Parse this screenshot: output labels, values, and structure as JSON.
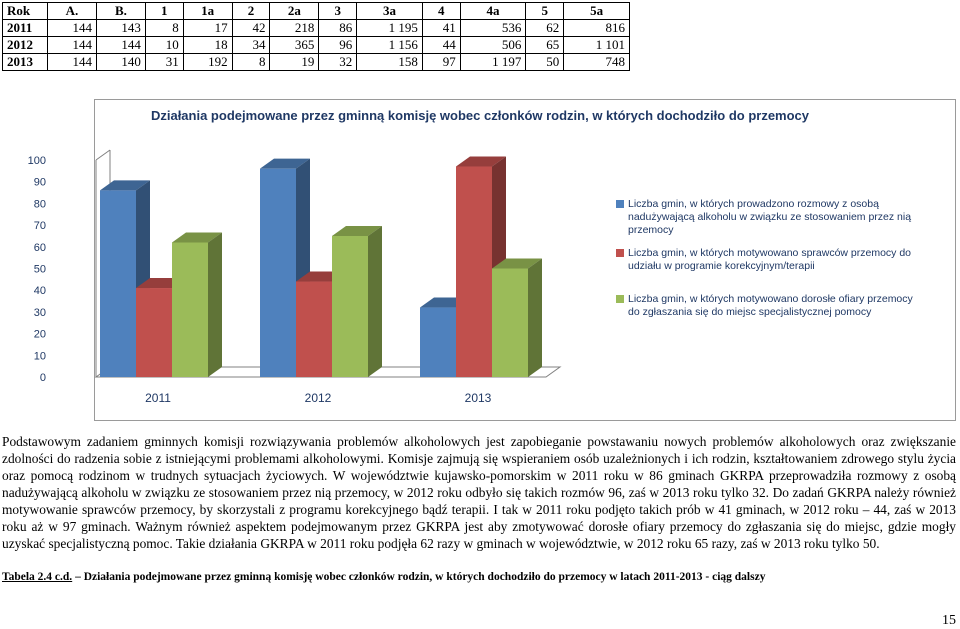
{
  "table": {
    "headers": [
      "Rok",
      "A.",
      "B.",
      "1",
      "1a",
      "2",
      "2a",
      "3",
      "3a",
      "4",
      "4a",
      "5",
      "5a"
    ],
    "rows": [
      [
        "2011",
        "144",
        "143",
        "8",
        "17",
        "42",
        "218",
        "86",
        "1 195",
        "41",
        "536",
        "62",
        "816"
      ],
      [
        "2012",
        "144",
        "144",
        "10",
        "18",
        "34",
        "365",
        "96",
        "1 156",
        "44",
        "506",
        "65",
        "1 101"
      ],
      [
        "2013",
        "144",
        "140",
        "31",
        "192",
        "8",
        "19",
        "32",
        "158",
        "97",
        "1 197",
        "50",
        "748"
      ]
    ]
  },
  "chart_data": {
    "type": "bar",
    "title": "Działania podejmowane przez gminną komisję wobec członków rodzin, w których dochodziło do przemocy",
    "categories": [
      "2011",
      "2012",
      "2013"
    ],
    "series": [
      {
        "name": "Liczba gmin, w których prowadzono rozmowy z osobą nadużywającą alkoholu w związku ze stosowaniem przez nią przemocy",
        "values": [
          86,
          96,
          32
        ],
        "color": "#4f81bd"
      },
      {
        "name": "Liczba gmin, w których motywowano sprawców przemocy do udziału w programie korekcyjnym/terapii",
        "values": [
          41,
          44,
          97
        ],
        "color": "#c0504d"
      },
      {
        "name": "Liczba gmin, w których motywowano dorosłe ofiary przemocy do zgłaszania się do miejsc specjalistycznej pomocy",
        "values": [
          62,
          65,
          50
        ],
        "color": "#9bbb59"
      }
    ],
    "yticks": [
      0,
      10,
      20,
      30,
      40,
      50,
      60,
      70,
      80,
      90,
      100
    ],
    "ylim": [
      0,
      100
    ],
    "legend": "right",
    "style": "3d-clustered"
  },
  "body_text": "Podstawowym zadaniem gminnych komisji rozwiązywania problemów alkoholowych jest zapobieganie powstawaniu nowych problemów alkoholowych oraz zwiększanie zdolności do radzenia sobie z istniejącymi problemami alkoholowymi. Komisje zajmują się wspieraniem osób uzależnionych i ich rodzin, kształtowaniem zdrowego stylu życia oraz pomocą rodzinom w trudnych sytuacjach życiowych. W województwie kujawsko-pomorskim w 2011 roku w 86 gminach GKRPA przeprowadziła rozmowy z osobą nadużywającą alkoholu w związku ze stosowaniem przez nią przemocy, w 2012 roku odbyło się takich rozmów 96, zaś w 2013 roku tylko 32. Do zadań GKRPA należy również motywowanie sprawców przemocy, by skorzystali z programu korekcyjnego bądź terapii. I tak w 2011 roku podjęto takich prób w 41 gminach, w 2012 roku – 44, zaś w 2013 roku aż w 97 gminach. Ważnym również aspektem podejmowanym przez GKRPA jest aby zmotywować dorosłe ofiary przemocy do zgłaszania się do miejsc, gdzie mogły uzyskać specjalistyczną pomoc. Takie działania GKRPA w 2011 roku podjęła 62 razy w gminach w województwie, w 2012 roku 65 razy, zaś w 2013 roku tylko 50.",
  "caption": {
    "label": "Tabela 2.4 c.d.",
    "text": " – Działania podejmowane przez gminną komisję wobec członków rodzin, w których dochodziło do przemocy w latach 2011-2013 - ciąg dalszy"
  },
  "page_number": "15"
}
